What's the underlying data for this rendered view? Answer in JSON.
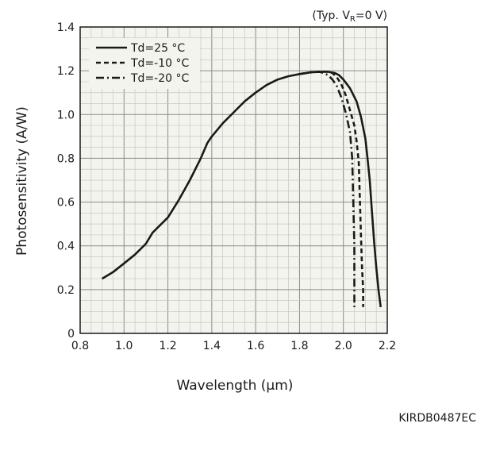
{
  "chart_data": {
    "type": "line",
    "condition": {
      "prefix": "(Typ. V",
      "sub": "R",
      "suffix": "=0 V)"
    },
    "xlabel": "Wavelength (μm)",
    "ylabel": "Photosensitivity (A/W)",
    "xlim": [
      0.8,
      2.2
    ],
    "ylim": [
      0,
      1.4
    ],
    "x_ticks": [
      "0.8",
      "1.0",
      "1.2",
      "1.4",
      "1.6",
      "1.8",
      "2.0",
      "2.2"
    ],
    "y_ticks": [
      "0",
      "0.2",
      "0.4",
      "0.6",
      "0.8",
      "1.0",
      "1.2",
      "1.4"
    ],
    "grid": true,
    "legend_position": "top-left",
    "series": [
      {
        "name": "Td=25 °C",
        "style": "solid",
        "x": [
          0.9,
          0.95,
          1.0,
          1.05,
          1.1,
          1.13,
          1.15,
          1.2,
          1.25,
          1.3,
          1.35,
          1.38,
          1.4,
          1.45,
          1.5,
          1.55,
          1.6,
          1.65,
          1.7,
          1.75,
          1.8,
          1.85,
          1.9,
          1.93,
          1.96,
          1.98,
          2.0,
          2.03,
          2.06,
          2.08,
          2.1,
          2.11,
          2.12,
          2.13,
          2.14,
          2.15,
          2.16,
          2.17
        ],
        "y": [
          0.25,
          0.28,
          0.32,
          0.36,
          0.41,
          0.46,
          0.48,
          0.53,
          0.61,
          0.7,
          0.8,
          0.87,
          0.9,
          0.96,
          1.01,
          1.06,
          1.1,
          1.135,
          1.16,
          1.175,
          1.185,
          1.193,
          1.195,
          1.195,
          1.19,
          1.18,
          1.16,
          1.12,
          1.06,
          0.99,
          0.89,
          0.8,
          0.7,
          0.56,
          0.42,
          0.3,
          0.2,
          0.12
        ]
      },
      {
        "name": "Td=-10 °C",
        "style": "dashed",
        "x": [
          1.8,
          1.85,
          1.9,
          1.93,
          1.95,
          1.97,
          1.99,
          2.01,
          2.03,
          2.05,
          2.06,
          2.07,
          2.075,
          2.08,
          2.085,
          2.09,
          2.09
        ],
        "y": [
          1.185,
          1.193,
          1.196,
          1.195,
          1.19,
          1.17,
          1.14,
          1.09,
          1.02,
          0.95,
          0.88,
          0.78,
          0.62,
          0.45,
          0.3,
          0.2,
          0.12
        ]
      },
      {
        "name": "Td=-20 °C",
        "style": "dashdot",
        "x": [
          1.8,
          1.85,
          1.89,
          1.91,
          1.93,
          1.95,
          1.97,
          1.99,
          2.01,
          2.03,
          2.04,
          2.045,
          2.05,
          2.05,
          2.05
        ],
        "y": [
          1.185,
          1.192,
          1.195,
          1.19,
          1.18,
          1.16,
          1.13,
          1.08,
          1.01,
          0.92,
          0.8,
          0.6,
          0.4,
          0.25,
          0.12
        ]
      }
    ]
  },
  "figure_code": "KIRDB0487EC"
}
